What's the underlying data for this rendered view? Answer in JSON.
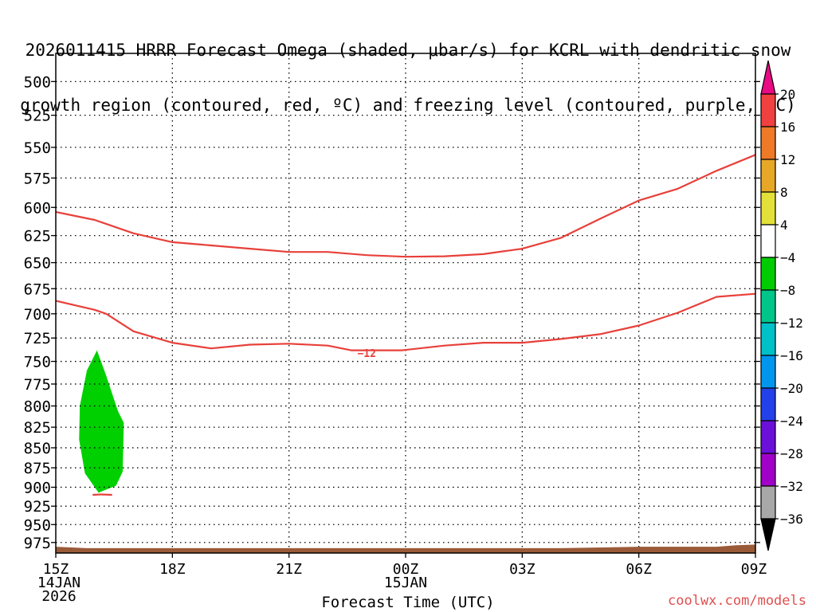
{
  "title_line1": "2026011415 HRRR Forecast Omega (shaded, μbar/s) for KCRL with dendritic snow",
  "title_line2": "growth region (contoured, red, ºC) and freezing level (contoured, purple, ºC)",
  "credit": "coolwx.com/models",
  "colors": {
    "dgz_contour": "#e8403a",
    "terrain": "#9a5a38",
    "omega_fill": "#00d000",
    "grid": "#555555"
  },
  "chart_data": {
    "type": "contour",
    "xlabel": "Forecast Time (UTC)",
    "x_ticks": [
      {
        "hour": 0,
        "lines": [
          "15Z",
          "14JAN",
          "2026"
        ]
      },
      {
        "hour": 3,
        "lines": [
          "18Z"
        ]
      },
      {
        "hour": 6,
        "lines": [
          "21Z"
        ]
      },
      {
        "hour": 9,
        "lines": [
          "00Z",
          "15JAN"
        ]
      },
      {
        "hour": 12,
        "lines": [
          "03Z"
        ]
      },
      {
        "hour": 15,
        "lines": [
          "06Z"
        ]
      },
      {
        "hour": 18,
        "lines": [
          "09Z"
        ]
      }
    ],
    "xlim": [
      0,
      18
    ],
    "y_ticks": [
      500,
      525,
      550,
      575,
      600,
      625,
      650,
      675,
      700,
      725,
      750,
      775,
      800,
      825,
      850,
      875,
      900,
      925,
      950,
      975
    ],
    "ylim": [
      480,
      990
    ],
    "y_scale": "log-pressure",
    "grid": true,
    "colorbar": {
      "labels": [
        "20",
        "16",
        "12",
        "8",
        "4",
        "−4",
        "−8",
        "−12",
        "−16",
        "−20",
        "−24",
        "−28",
        "−32",
        "−36"
      ],
      "colors": [
        "#ea0a84",
        "#f04040",
        "#ee7a28",
        "#e6a826",
        "#e4e03a",
        "#ffffff",
        "#00cc00",
        "#00c68a",
        "#00c0c8",
        "#0096ee",
        "#2440e8",
        "#6a10d8",
        "#a000c8",
        "#a8a8a8",
        "#000000"
      ]
    },
    "contours": [
      {
        "label": "",
        "points": [
          [
            0,
            604
          ],
          [
            1,
            611
          ],
          [
            2,
            623
          ],
          [
            3,
            631
          ],
          [
            4,
            634
          ],
          [
            5,
            637
          ],
          [
            6,
            640
          ],
          [
            7,
            640
          ],
          [
            8,
            643
          ],
          [
            9,
            644.5
          ],
          [
            10,
            644
          ],
          [
            11,
            642
          ],
          [
            12,
            637
          ],
          [
            13,
            627
          ],
          [
            14,
            610
          ],
          [
            15,
            594
          ],
          [
            16,
            584
          ],
          [
            17,
            569
          ],
          [
            18,
            556
          ]
        ]
      },
      {
        "label": "−12",
        "label_at": [
          8,
          741
        ],
        "points": [
          [
            0,
            687
          ],
          [
            1,
            696
          ],
          [
            1.3,
            700
          ],
          [
            2,
            718
          ],
          [
            3,
            730
          ],
          [
            4,
            736
          ],
          [
            5,
            732
          ],
          [
            6,
            731
          ],
          [
            7,
            733
          ],
          [
            7.6,
            738
          ],
          [
            8.9,
            738
          ],
          [
            10,
            733
          ],
          [
            11,
            730
          ],
          [
            12,
            730
          ],
          [
            13,
            726
          ],
          [
            14,
            721
          ],
          [
            15,
            712
          ],
          [
            16,
            699
          ],
          [
            17,
            683
          ],
          [
            18,
            680
          ]
        ]
      },
      {
        "label": "",
        "points": [
          [
            0.95,
            910
          ],
          [
            1.15,
            909.5
          ],
          [
            1.45,
            910
          ]
        ]
      }
    ],
    "omega_regions": [
      {
        "range": "−8 to −4",
        "points": [
          [
            1.06,
            738
          ],
          [
            1.3,
            766
          ],
          [
            1.6,
            806
          ],
          [
            1.75,
            820
          ],
          [
            1.72,
            880
          ],
          [
            1.55,
            898
          ],
          [
            1.1,
            907
          ],
          [
            0.75,
            882
          ],
          [
            0.6,
            840
          ],
          [
            0.62,
            800
          ],
          [
            0.8,
            760
          ]
        ]
      }
    ],
    "terrain_top": [
      [
        0,
        981
      ],
      [
        0.8,
        983
      ],
      [
        4,
        983
      ],
      [
        13,
        983
      ],
      [
        15,
        981
      ],
      [
        17,
        981
      ],
      [
        17.5,
        979
      ],
      [
        18,
        978
      ]
    ]
  }
}
